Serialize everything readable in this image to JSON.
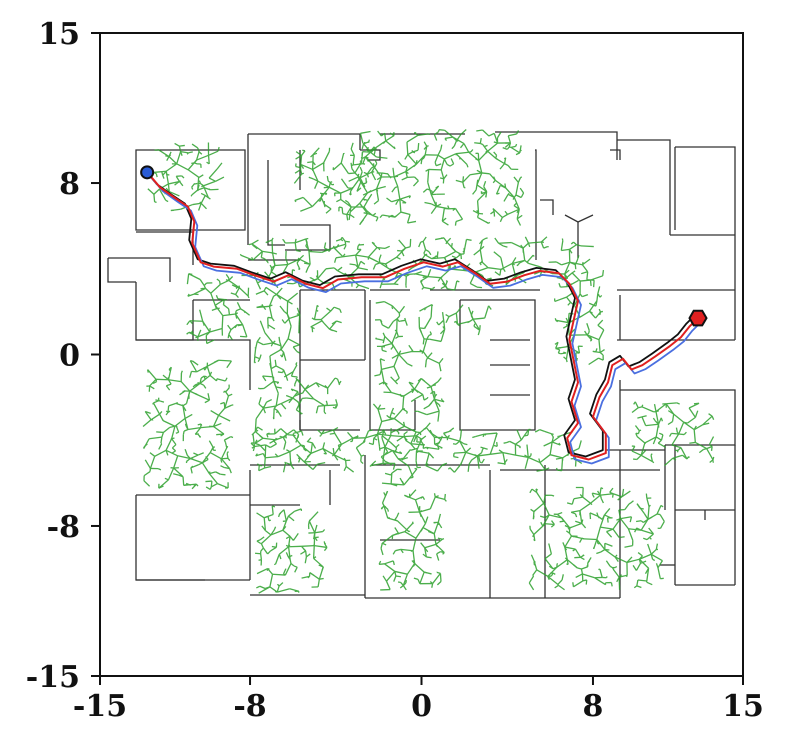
{
  "chart_data": {
    "type": "scatter",
    "xlim": [
      -15,
      15
    ],
    "ylim": [
      -15,
      15
    ],
    "xticks": [
      "-15",
      "-8",
      "0",
      "8",
      "15"
    ],
    "yticks": [
      "15",
      "8",
      "0",
      "-8",
      "-15"
    ],
    "xtick_values": [
      -15,
      -8,
      0,
      8,
      15
    ],
    "ytick_values": [
      15,
      8,
      0,
      -8,
      -15
    ],
    "grid": false,
    "start": {
      "x": -12.8,
      "y": 8.5,
      "color": "#2a5cd6"
    },
    "goal": {
      "x": 12.9,
      "y": 1.7,
      "color": "#e02020"
    },
    "colors": {
      "tree": "#2ca02c",
      "path_black": "#111111",
      "path_red": "#e02020",
      "path_blue": "#4a6fe0",
      "walls": "#333333"
    },
    "path": [
      [
        -12.8,
        8.5
      ],
      [
        -12.2,
        7.8
      ],
      [
        -11.5,
        7.3
      ],
      [
        -10.9,
        6.9
      ],
      [
        -10.6,
        6.2
      ],
      [
        -10.7,
        5.2
      ],
      [
        -10.3,
        4.3
      ],
      [
        -9.7,
        4.1
      ],
      [
        -8.6,
        4.0
      ],
      [
        -7.8,
        3.7
      ],
      [
        -6.9,
        3.4
      ],
      [
        -6.2,
        3.7
      ],
      [
        -5.4,
        3.3
      ],
      [
        -4.6,
        3.1
      ],
      [
        -3.9,
        3.5
      ],
      [
        -2.8,
        3.6
      ],
      [
        -1.7,
        3.6
      ],
      [
        -0.8,
        4.0
      ],
      [
        0.1,
        4.3
      ],
      [
        1.0,
        4.1
      ],
      [
        1.7,
        4.3
      ],
      [
        2.5,
        3.8
      ],
      [
        3.2,
        3.3
      ],
      [
        4.0,
        3.4
      ],
      [
        4.8,
        3.7
      ],
      [
        5.5,
        3.9
      ],
      [
        6.4,
        3.8
      ],
      [
        6.9,
        3.3
      ],
      [
        7.3,
        2.5
      ],
      [
        7.1,
        1.6
      ],
      [
        6.9,
        0.7
      ],
      [
        7.1,
        -0.3
      ],
      [
        7.3,
        -1.3
      ],
      [
        7.0,
        -2.2
      ],
      [
        7.3,
        -3.2
      ],
      [
        6.8,
        -3.9
      ],
      [
        7.0,
        -4.7
      ],
      [
        7.8,
        -4.9
      ],
      [
        8.6,
        -4.6
      ],
      [
        8.6,
        -3.7
      ],
      [
        8.0,
        -2.9
      ],
      [
        8.3,
        -2.0
      ],
      [
        8.7,
        -1.3
      ],
      [
        8.9,
        -0.5
      ],
      [
        9.4,
        -0.2
      ],
      [
        9.8,
        -0.7
      ],
      [
        10.3,
        -0.5
      ],
      [
        10.9,
        -0.1
      ],
      [
        11.6,
        0.4
      ],
      [
        12.1,
        0.8
      ],
      [
        12.5,
        1.3
      ],
      [
        12.9,
        1.7
      ]
    ],
    "tree_regions": [
      [
        -12.8,
        -9.2,
        6.7,
        9.9
      ],
      [
        -11.0,
        -8.0,
        0.5,
        3.8
      ],
      [
        -13.0,
        -8.7,
        -6.3,
        -0.1
      ],
      [
        -7.8,
        -5.6,
        -4.5,
        3.4
      ],
      [
        -6.0,
        -3.6,
        -2.8,
        -1.0
      ],
      [
        -5.3,
        -3.7,
        1.0,
        2.3
      ],
      [
        -2.3,
        1.1,
        -4.5,
        2.5
      ],
      [
        1.1,
        3.3,
        1.1,
        2.4
      ],
      [
        -3.4,
        4.8,
        6.0,
        10.5
      ],
      [
        -6.0,
        -2.0,
        6.2,
        9.8
      ],
      [
        -8.5,
        8.1,
        3.0,
        5.5
      ],
      [
        -8.0,
        7.6,
        -5.5,
        -3.4
      ],
      [
        6.2,
        8.6,
        -0.5,
        4.0
      ],
      [
        -7.8,
        -4.4,
        -11.2,
        -7.0
      ],
      [
        -2.0,
        1.2,
        -11.0,
        -6.3
      ],
      [
        5.0,
        11.4,
        -11.0,
        -6.2
      ],
      [
        9.8,
        13.7,
        -5.2,
        -2.2
      ],
      [
        -2.0,
        -0.2,
        -6.2,
        -4.4
      ]
    ]
  }
}
